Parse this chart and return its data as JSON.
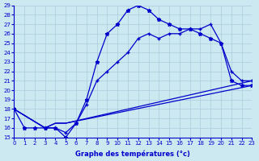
{
  "xlabel": "Graphe des températures (°c)",
  "background_color": "#cce8f0",
  "line_color": "#0000cc",
  "grid_color": "#aaccdd",
  "xlim": [
    0,
    23
  ],
  "ylim": [
    15,
    29
  ],
  "yticks": [
    15,
    16,
    17,
    18,
    19,
    20,
    21,
    22,
    23,
    24,
    25,
    26,
    27,
    28,
    29
  ],
  "xticks": [
    0,
    1,
    2,
    3,
    4,
    5,
    6,
    7,
    8,
    9,
    10,
    11,
    12,
    13,
    14,
    15,
    16,
    17,
    18,
    19,
    20,
    21,
    22,
    23
  ],
  "line1_x": [
    0,
    1,
    2,
    3,
    4,
    5,
    6,
    7,
    8,
    9,
    10,
    11,
    12,
    13,
    14,
    15,
    16,
    17,
    18,
    19,
    20,
    21,
    22,
    23
  ],
  "line1_y": [
    18,
    16,
    16,
    16,
    16,
    15,
    16.5,
    19,
    23,
    26,
    27,
    28.5,
    29,
    28.5,
    27.5,
    27,
    26.5,
    26.5,
    26,
    25.5,
    25,
    21,
    20.5,
    20.5
  ],
  "line2_x": [
    0,
    3,
    4,
    5,
    6,
    7,
    8,
    9,
    10,
    11,
    12,
    13,
    14,
    15,
    16,
    17,
    18,
    19,
    20,
    21,
    22,
    23
  ],
  "line2_y": [
    18,
    16,
    16,
    15.5,
    16.5,
    18.5,
    21,
    22,
    23,
    24,
    25.5,
    26,
    25.5,
    26,
    26,
    26.5,
    26.5,
    27,
    25,
    22,
    21,
    21
  ],
  "line3_x": [
    0,
    3,
    4,
    5,
    23
  ],
  "line3_y": [
    18,
    16,
    16.5,
    16.5,
    21
  ],
  "line4_x": [
    0,
    3,
    4,
    5,
    23
  ],
  "line4_y": [
    18,
    16,
    16.5,
    16.5,
    20.5
  ]
}
